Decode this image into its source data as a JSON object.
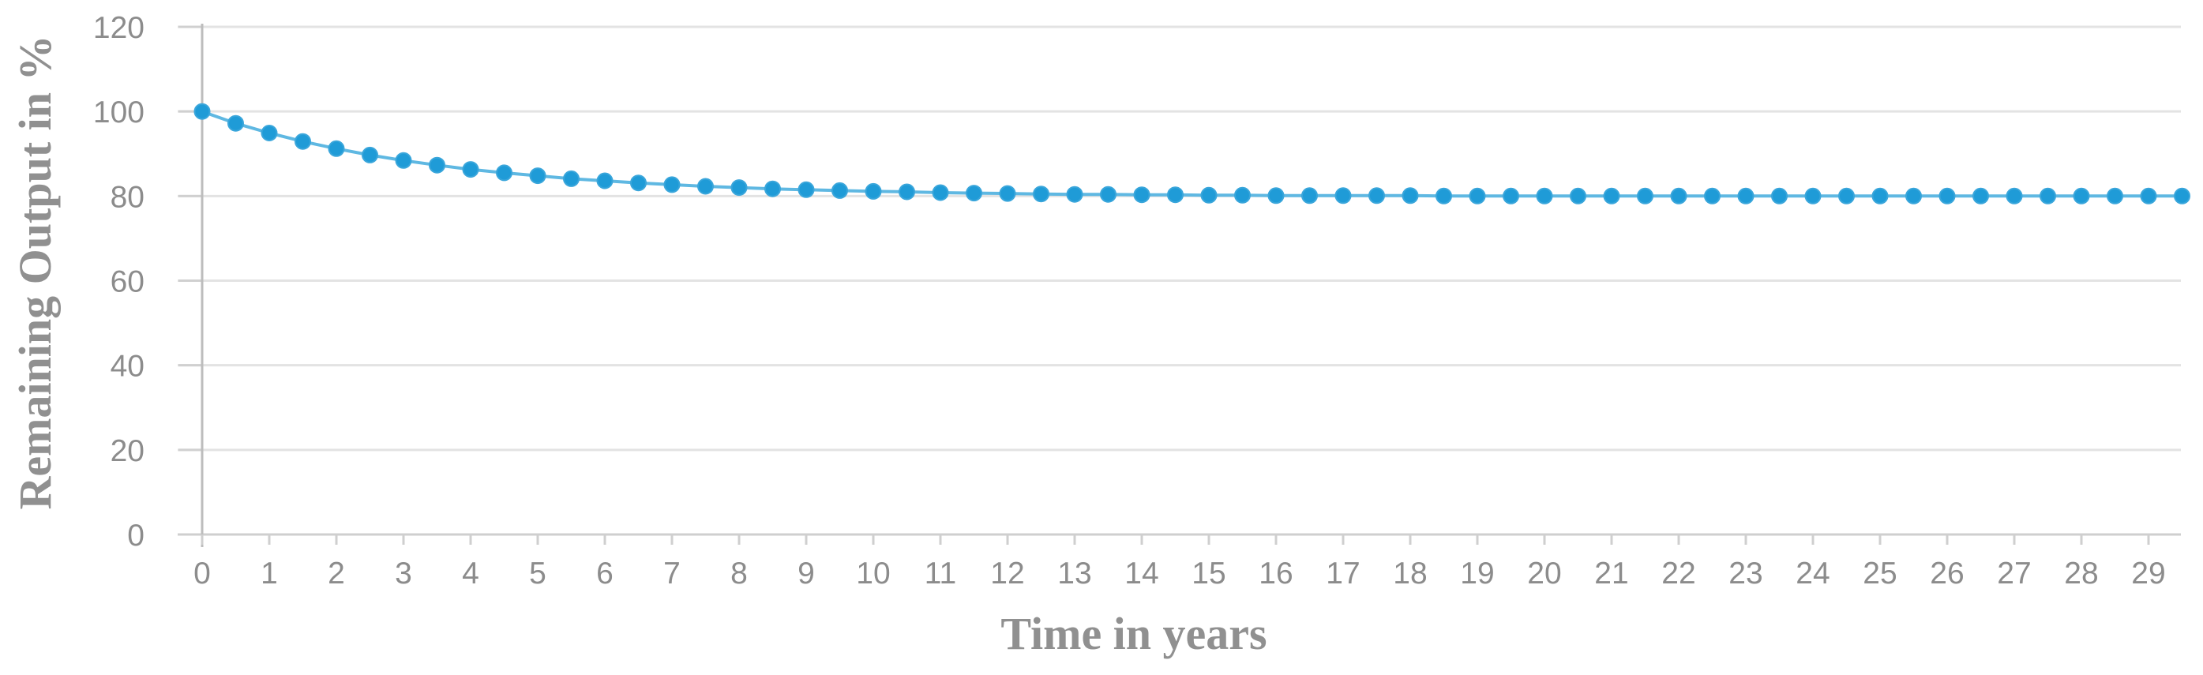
{
  "chart_data": {
    "type": "line",
    "title": "",
    "xlabel": "Time in years",
    "ylabel": "Remaining Output in %",
    "xlim": [
      0,
      29.5
    ],
    "ylim": [
      0,
      120
    ],
    "x_ticks": [
      0,
      1,
      2,
      3,
      4,
      5,
      6,
      7,
      8,
      9,
      10,
      11,
      12,
      13,
      14,
      15,
      16,
      17,
      18,
      19,
      20,
      21,
      22,
      23,
      24,
      25,
      26,
      27,
      28,
      29
    ],
    "y_ticks": [
      0,
      20,
      40,
      60,
      80,
      100,
      120
    ],
    "grid": "horizontal",
    "legend": "none",
    "series": [
      {
        "color": "#1f9bd7",
        "marker": "circle",
        "x": [
          0,
          0.5,
          1,
          1.5,
          2,
          2.5,
          3,
          3.5,
          4,
          4.5,
          5,
          5.5,
          6,
          6.5,
          7,
          7.5,
          8,
          8.5,
          9,
          9.5,
          10,
          10.5,
          11,
          11.5,
          12,
          12.5,
          13,
          13.5,
          14,
          14.5,
          15,
          15.5,
          16,
          16.5,
          17,
          17.5,
          18,
          18.5,
          19,
          19.5,
          20,
          20.5,
          21,
          21.5,
          22,
          22.5,
          23,
          23.5,
          24,
          24.5,
          25,
          25.5,
          26,
          26.5,
          27,
          27.5,
          28,
          28.5,
          29,
          29.5
        ],
        "y": [
          100,
          97.2,
          94.9,
          92.9,
          91.2,
          89.7,
          88.4,
          87.3,
          86.3,
          85.5,
          84.8,
          84.1,
          83.6,
          83.1,
          82.7,
          82.3,
          82.0,
          81.7,
          81.5,
          81.3,
          81.1,
          81.0,
          80.8,
          80.7,
          80.6,
          80.5,
          80.4,
          80.4,
          80.3,
          80.3,
          80.2,
          80.2,
          80.1,
          80.1,
          80.1,
          80.1,
          80.1,
          80.0,
          80.0,
          80.0,
          80.0,
          80.0,
          80.0,
          80.0,
          80.0,
          80.0,
          80.0,
          80.0,
          80.0,
          80.0,
          80.0,
          80.0,
          80.0,
          80.0,
          80.0,
          80.0,
          80.0,
          80.0,
          80.0,
          80.0
        ]
      }
    ]
  }
}
